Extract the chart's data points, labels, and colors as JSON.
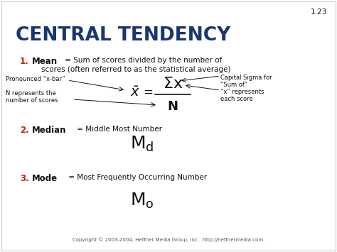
{
  "background_color": "#ffffff",
  "slide_number": "1.23",
  "title": "CENTRAL TENDENCY",
  "title_color": "#1a3570",
  "number_color": "#cc2200",
  "body_color": "#111111",
  "copyright": "Copyright © 2003-2004, Heffner Media Group, Inc.  http://heffnermedia.com.",
  "annotations": {
    "pronounced": "Pronounced “x-bar”",
    "n_represents": "N represents the\nnumber of scores",
    "capital_sigma": "Capital Sigma for\n“Sum of”",
    "x_represents": "“x” represents\neach score"
  }
}
